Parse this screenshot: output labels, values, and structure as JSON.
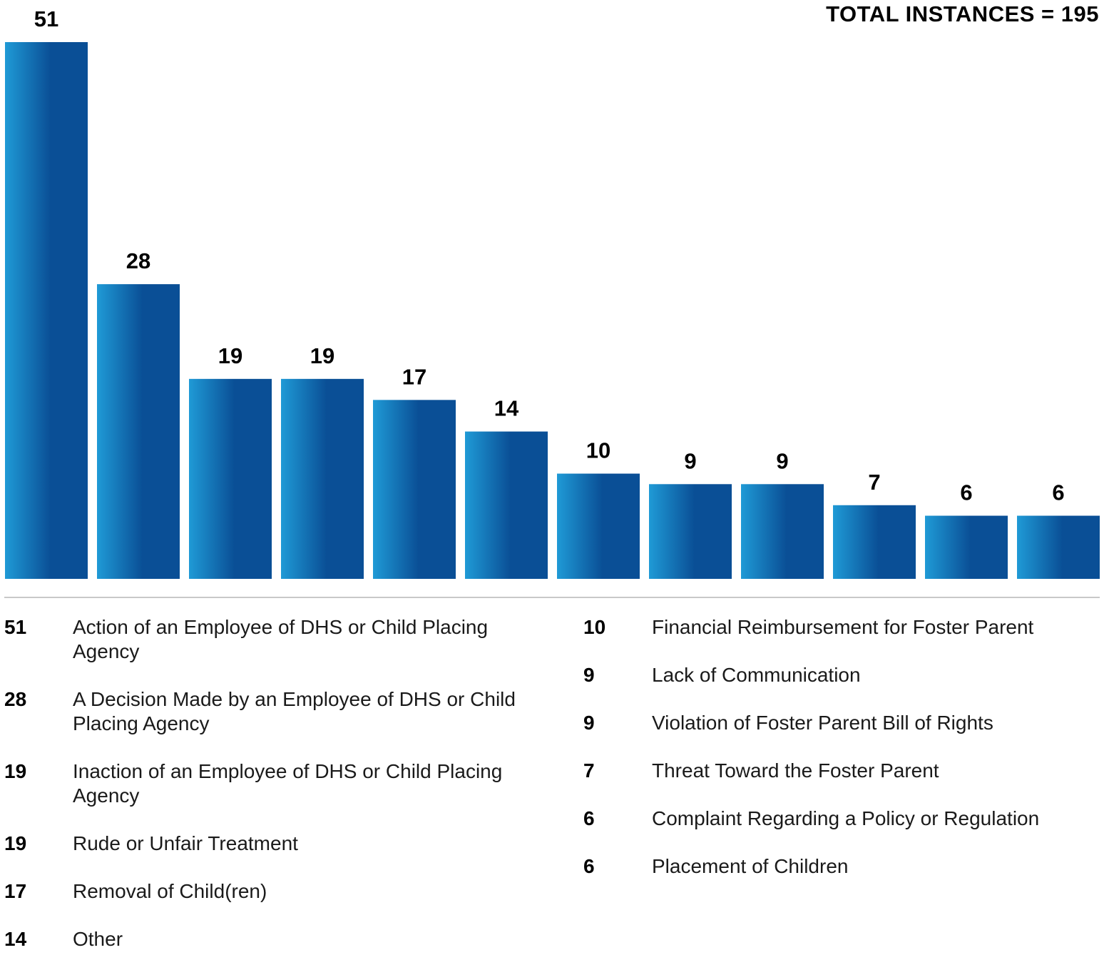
{
  "total_label": "TOTAL INSTANCES = 195",
  "colors": {
    "bar_light": "#1f9ad6",
    "bar_dark": "#0a4f96",
    "divider": "#c8c8c8"
  },
  "chart_data": {
    "type": "bar",
    "categories": [
      "Action of an Employee of DHS or Child Placing Agency",
      "A Decision Made by an Employee of DHS or Child Placing Agency",
      "Inaction of an Employee of DHS or Child Placing Agency",
      "Rude or Unfair Treatment",
      "Removal of Child(ren)",
      "Other",
      "Financial Reimbursement for Foster Parent",
      "Lack of Communication",
      "Violation of Foster Parent Bill of Rights",
      "Threat Toward the Foster Parent",
      "Complaint Regarding a Policy or Regulation",
      "Placement of Children"
    ],
    "values": [
      51,
      28,
      19,
      19,
      17,
      14,
      10,
      9,
      9,
      7,
      6,
      6
    ],
    "ylim": [
      0,
      51
    ],
    "grid": false
  },
  "legend_left": [
    {
      "value": "51",
      "label": "Action of an Employee of DHS or Child Placing Agency"
    },
    {
      "value": "28",
      "label": "A Decision Made by an Employee of DHS or Child Placing Agency"
    },
    {
      "value": "19",
      "label": "Inaction of an Employee of DHS or Child Placing Agency"
    },
    {
      "value": "19",
      "label": "Rude or Unfair Treatment"
    },
    {
      "value": "17",
      "label": "Removal of Child(ren)"
    },
    {
      "value": "14",
      "label": "Other"
    }
  ],
  "legend_right": [
    {
      "value": "10",
      "label": "Financial Reimbursement for Foster Parent"
    },
    {
      "value": "9",
      "label": "Lack of Communication"
    },
    {
      "value": "9",
      "label": "Violation of Foster Parent Bill of Rights"
    },
    {
      "value": "7",
      "label": "Threat Toward the Foster Parent"
    },
    {
      "value": "6",
      "label": "Complaint Regarding a Policy or Regulation"
    },
    {
      "value": "6",
      "label": "Placement of Children"
    }
  ]
}
